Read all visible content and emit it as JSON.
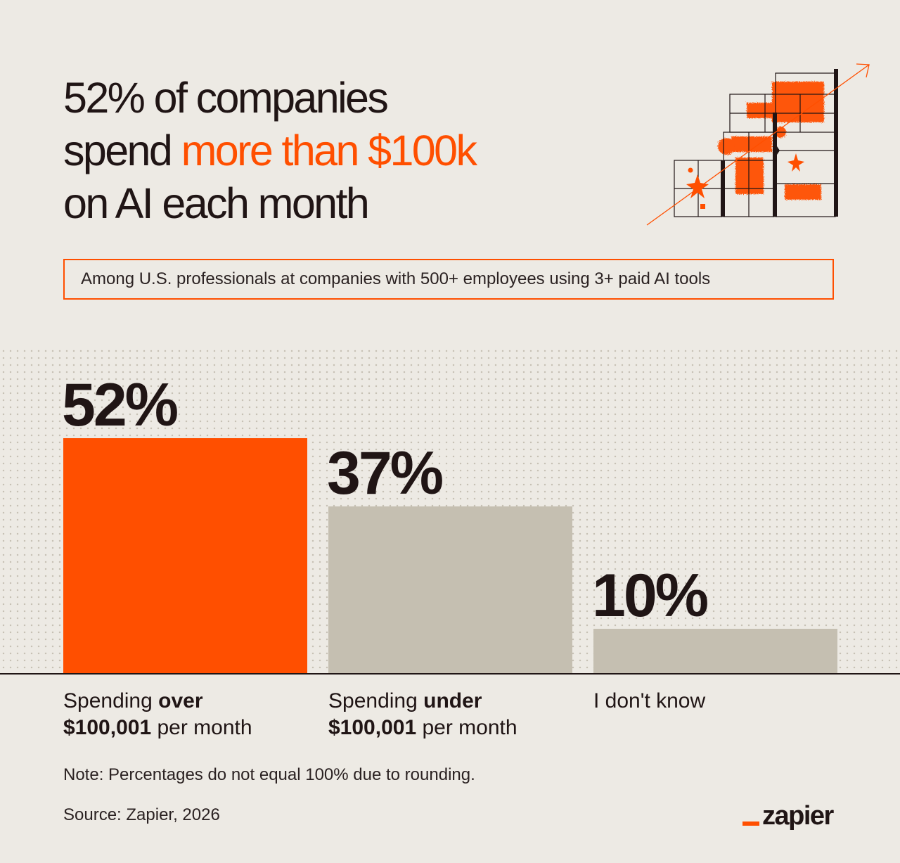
{
  "headline": {
    "line1": "52% of companies",
    "line2_prefix": "spend ",
    "line2_highlight": "more than $100k",
    "line3": "on AI each month"
  },
  "subtitle": "Among U.S. professionals at companies with 500+ employees using 3+ paid AI tools",
  "colors": {
    "accent": "#ff4f00",
    "neutral_bar": "#c5bfb1",
    "text": "#201515",
    "background": "#edeae4"
  },
  "chart_data": {
    "type": "bar",
    "categories": [
      "Spending over $100,001 per month",
      "Spending under $100,001 per month",
      "I don't know"
    ],
    "values": [
      52,
      37,
      10
    ],
    "value_labels": [
      "52%",
      "37%",
      "10%"
    ],
    "series_colors": [
      "#ff4f00",
      "#c5bfb1",
      "#c5bfb1"
    ],
    "title": "",
    "xlabel": "",
    "ylabel": "",
    "ylim": [
      0,
      100
    ],
    "grid": false,
    "legend": "none"
  },
  "labels": [
    {
      "pre": "Spending ",
      "bold1": "over",
      "bold2": "$100,001",
      "post": " per month"
    },
    {
      "pre": "Spending ",
      "bold1": "under",
      "bold2": "$100,001",
      "post": " per month"
    },
    {
      "pre": "I don't know",
      "bold1": "",
      "bold2": "",
      "post": ""
    }
  ],
  "note": "Note: Percentages do not equal 100% due to rounding.",
  "source": "Source: Zapier, 2026",
  "brand": {
    "logo_text": "zapier",
    "logo_icon": "zapier-logo"
  }
}
